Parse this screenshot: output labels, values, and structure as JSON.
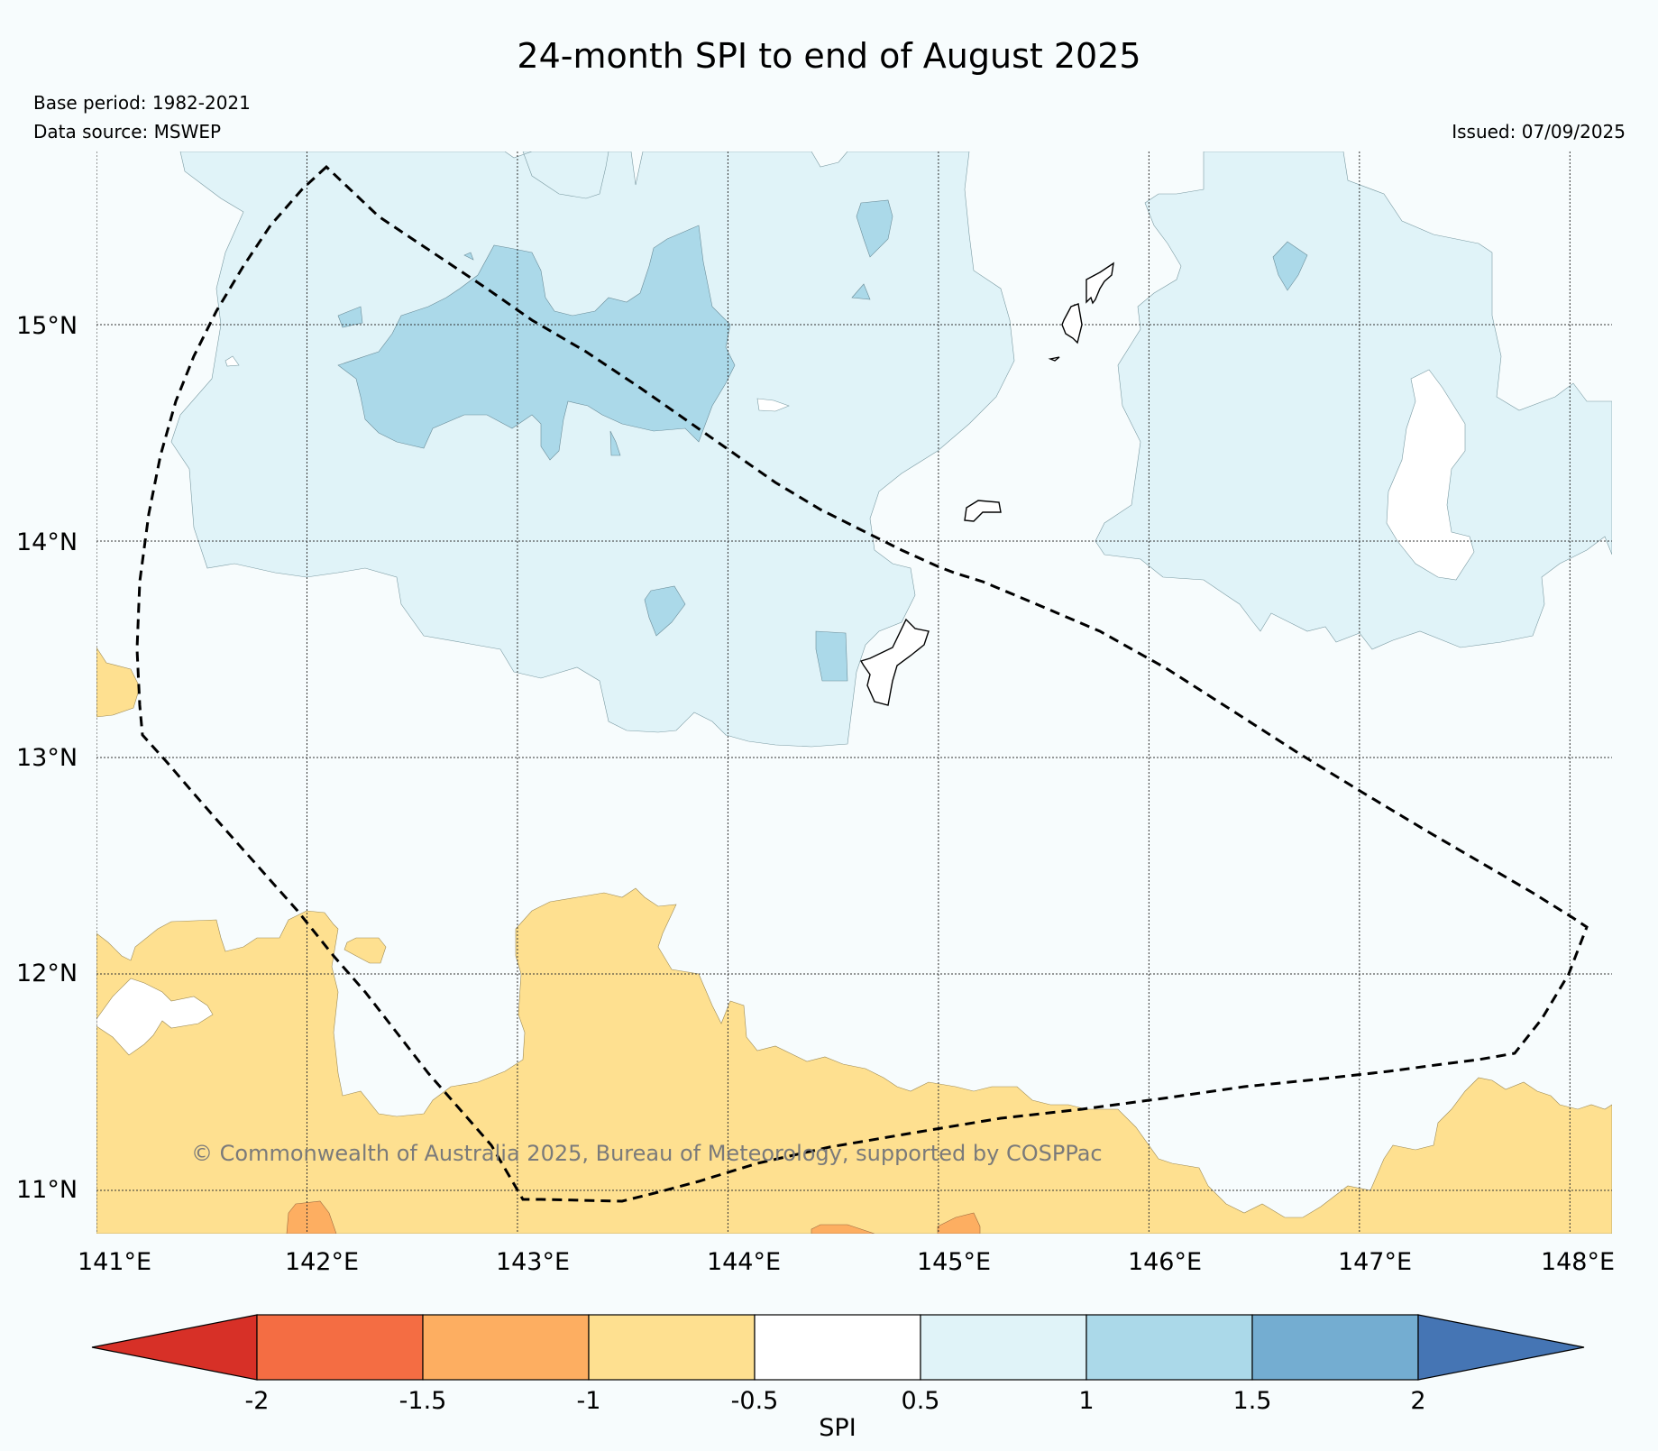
{
  "title": "24-month SPI to end of August 2025",
  "base_period": "Base period: 1982-2021",
  "data_source": "Data source: MSWEP",
  "issued": "Issued: 07/09/2025",
  "copyright": "© Commonwealth of Australia 2025, Bureau of Meteorology, supported by COSPPac",
  "map": {
    "lon_ticks": [
      "141°E",
      "142°E",
      "143°E",
      "144°E",
      "145°E",
      "146°E",
      "147°E",
      "148°E"
    ],
    "lat_ticks": [
      "15°N",
      "14°N",
      "13°N",
      "12°N",
      "11°N"
    ],
    "lon_range": [
      141.0,
      148.2
    ],
    "lat_range": [
      10.8,
      15.8
    ]
  },
  "colorbar": {
    "label": "SPI",
    "ticks": [
      "-2",
      "-1.5",
      "-1",
      "-0.5",
      "0.5",
      "1",
      "1.5",
      "2"
    ],
    "colors": {
      "below_-2": "#d73027",
      "-2_-1.5": "#f46d43",
      "-1.5_-1": "#fdae61",
      "-1_-0.5": "#fee090",
      "-0.5_0.5": "#ffffff",
      "0.5_1": "#e0f3f8",
      "1_1.5": "#abd9e9",
      "1.5_2": "#74add1",
      "above_2": "#4575b4"
    }
  }
}
